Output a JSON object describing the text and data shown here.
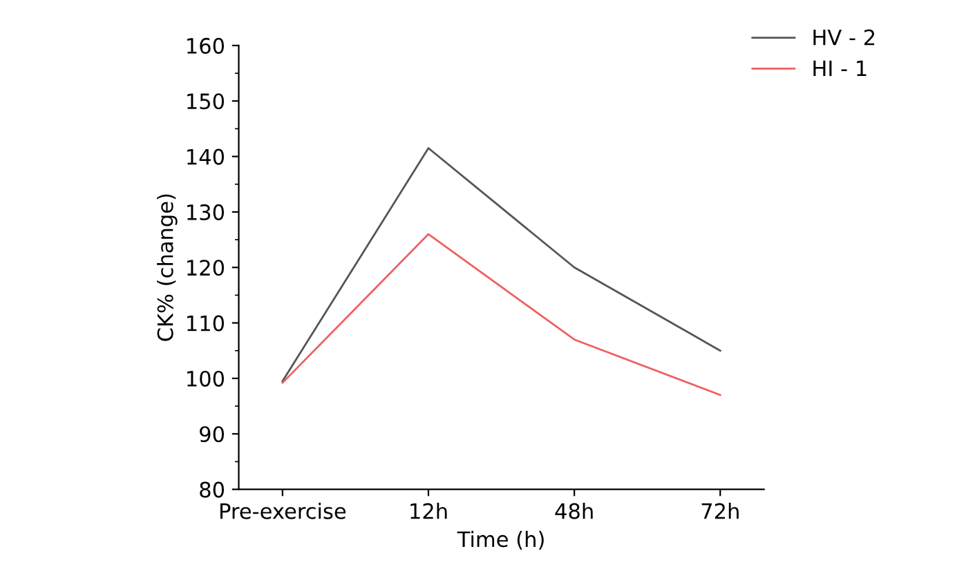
{
  "chart_data": {
    "type": "line",
    "xlabel": "Time (h)",
    "ylabel": "CK% (change)",
    "categories": [
      "Pre-exercise",
      "12h",
      "48h",
      "72h"
    ],
    "series": [
      {
        "name": "HV - 2",
        "color": "#555555",
        "values": [
          99.5,
          141.5,
          120,
          105
        ]
      },
      {
        "name": "HI - 1",
        "color": "#f06060",
        "values": [
          99.2,
          126,
          107,
          97
        ]
      }
    ],
    "ylim": [
      80,
      160
    ],
    "yticks": [
      80,
      90,
      100,
      110,
      120,
      130,
      140,
      150,
      160
    ],
    "grid": false,
    "legend": "top right",
    "marker": "none",
    "line_style": "solid"
  }
}
